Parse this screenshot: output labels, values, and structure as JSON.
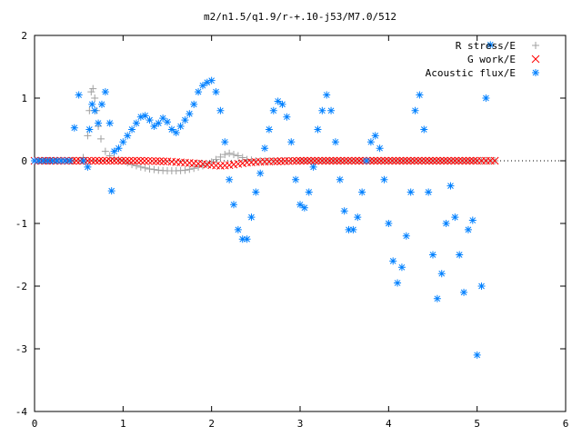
{
  "chart_data": {
    "type": "scatter",
    "title": "m2/n1.5/q1.9/r-+.10-j53/M7.0/512",
    "xlim": [
      0,
      6
    ],
    "ylim": [
      -4,
      2
    ],
    "xticks": [
      0,
      1,
      2,
      3,
      4,
      5,
      6
    ],
    "yticks": [
      -4,
      -3,
      -2,
      -1,
      0,
      1,
      2
    ],
    "grid": false,
    "legend_position": "top-right",
    "series": [
      {
        "name": "R stress/E",
        "marker": "+",
        "color": "#a0a0a0",
        "x": [
          0.0,
          0.3,
          0.5,
          0.55,
          0.6,
          0.62,
          0.64,
          0.66,
          0.68,
          0.7,
          0.72,
          0.75,
          0.8,
          0.85,
          0.9,
          0.95,
          1.0,
          1.05,
          1.1,
          1.2,
          1.3,
          1.4,
          1.5,
          1.6,
          1.7,
          1.8,
          1.9,
          2.0,
          2.05,
          2.1,
          2.15,
          2.2,
          2.25,
          2.3,
          2.35,
          2.4,
          2.5,
          2.6,
          2.8,
          3.0,
          3.5,
          4.0,
          4.5,
          5.0,
          5.2
        ],
        "y": [
          0.0,
          0.0,
          0.0,
          0.05,
          0.4,
          0.8,
          1.1,
          1.15,
          1.0,
          0.8,
          0.55,
          0.35,
          0.15,
          0.08,
          0.04,
          0.02,
          0.0,
          -0.03,
          -0.06,
          -0.1,
          -0.13,
          -0.15,
          -0.16,
          -0.16,
          -0.15,
          -0.12,
          -0.08,
          -0.02,
          0.02,
          0.06,
          0.1,
          0.12,
          0.1,
          0.08,
          0.05,
          0.02,
          0.0,
          0.0,
          0.0,
          0.0,
          0.0,
          0.0,
          0.0,
          0.0,
          0.0
        ]
      },
      {
        "name": "G work/E",
        "marker": "x",
        "color": "#ff0000",
        "x": [
          0.0,
          0.3,
          0.6,
          0.9,
          1.2,
          1.5,
          1.7,
          1.9,
          2.0,
          2.1,
          2.2,
          2.3,
          2.4,
          2.5,
          2.7,
          3.0,
          3.5,
          4.0,
          4.5,
          5.0,
          5.2
        ],
        "y": [
          0.0,
          0.0,
          0.0,
          0.0,
          0.0,
          -0.01,
          -0.03,
          -0.05,
          -0.07,
          -0.08,
          -0.07,
          -0.05,
          -0.03,
          -0.02,
          -0.01,
          0.0,
          0.0,
          0.0,
          0.0,
          0.0,
          0.0
        ]
      },
      {
        "name": "Acoustic flux/E",
        "marker": "*",
        "color": "#0080ff",
        "x": [
          0.0,
          0.2,
          0.4,
          0.5,
          0.55,
          0.6,
          0.62,
          0.65,
          0.68,
          0.72,
          0.76,
          0.8,
          0.85,
          0.87,
          0.9,
          0.95,
          1.0,
          1.05,
          1.1,
          1.15,
          1.2,
          1.25,
          1.3,
          1.35,
          1.4,
          1.45,
          1.5,
          1.55,
          1.6,
          1.65,
          1.7,
          1.75,
          1.8,
          1.85,
          1.9,
          1.95,
          2.0,
          2.05,
          2.1,
          2.15,
          2.2,
          2.25,
          2.3,
          2.35,
          2.4,
          2.45,
          2.5,
          2.55,
          2.6,
          2.65,
          2.7,
          2.75,
          2.8,
          2.85,
          2.9,
          2.95,
          3.0,
          3.05,
          3.1,
          3.15,
          3.2,
          3.25,
          3.3,
          3.35,
          3.4,
          3.45,
          3.5,
          3.55,
          3.6,
          3.65,
          3.7,
          3.75,
          3.8,
          3.85,
          3.9,
          3.95,
          4.0,
          4.05,
          4.1,
          4.15,
          4.2,
          4.25,
          4.3,
          4.35,
          4.4,
          4.45,
          4.5,
          4.55,
          4.6,
          4.65,
          4.7,
          4.75,
          4.8,
          4.85,
          4.9,
          4.95,
          5.0,
          5.05,
          5.1,
          5.15
        ],
        "y": [
          0.0,
          0.0,
          0.0,
          1.05,
          0.0,
          -0.1,
          0.5,
          0.9,
          0.8,
          0.6,
          0.9,
          1.1,
          0.6,
          -0.48,
          0.15,
          0.2,
          0.3,
          0.4,
          0.5,
          0.6,
          0.7,
          0.72,
          0.65,
          0.55,
          0.6,
          0.68,
          0.62,
          0.5,
          0.45,
          0.55,
          0.65,
          0.75,
          0.9,
          1.1,
          1.2,
          1.25,
          1.28,
          1.1,
          0.8,
          0.3,
          -0.3,
          -0.7,
          -1.1,
          -1.25,
          -1.25,
          -0.9,
          -0.5,
          -0.2,
          0.2,
          0.5,
          0.8,
          0.95,
          0.9,
          0.7,
          0.3,
          -0.3,
          -0.7,
          -0.75,
          -0.5,
          -0.1,
          0.5,
          0.8,
          1.05,
          0.8,
          0.3,
          -0.3,
          -0.8,
          -1.1,
          -1.1,
          -0.9,
          -0.5,
          0.0,
          0.3,
          0.4,
          0.2,
          -0.3,
          -1.0,
          -1.6,
          -1.95,
          -1.7,
          -1.2,
          -0.5,
          0.8,
          1.05,
          0.5,
          -0.5,
          -1.5,
          -2.2,
          -1.8,
          -1.0,
          -0.4,
          -0.9,
          -1.5,
          -2.1,
          -1.1,
          -0.95,
          -3.1,
          -2.0,
          1.0,
          1.85
        ]
      }
    ]
  }
}
